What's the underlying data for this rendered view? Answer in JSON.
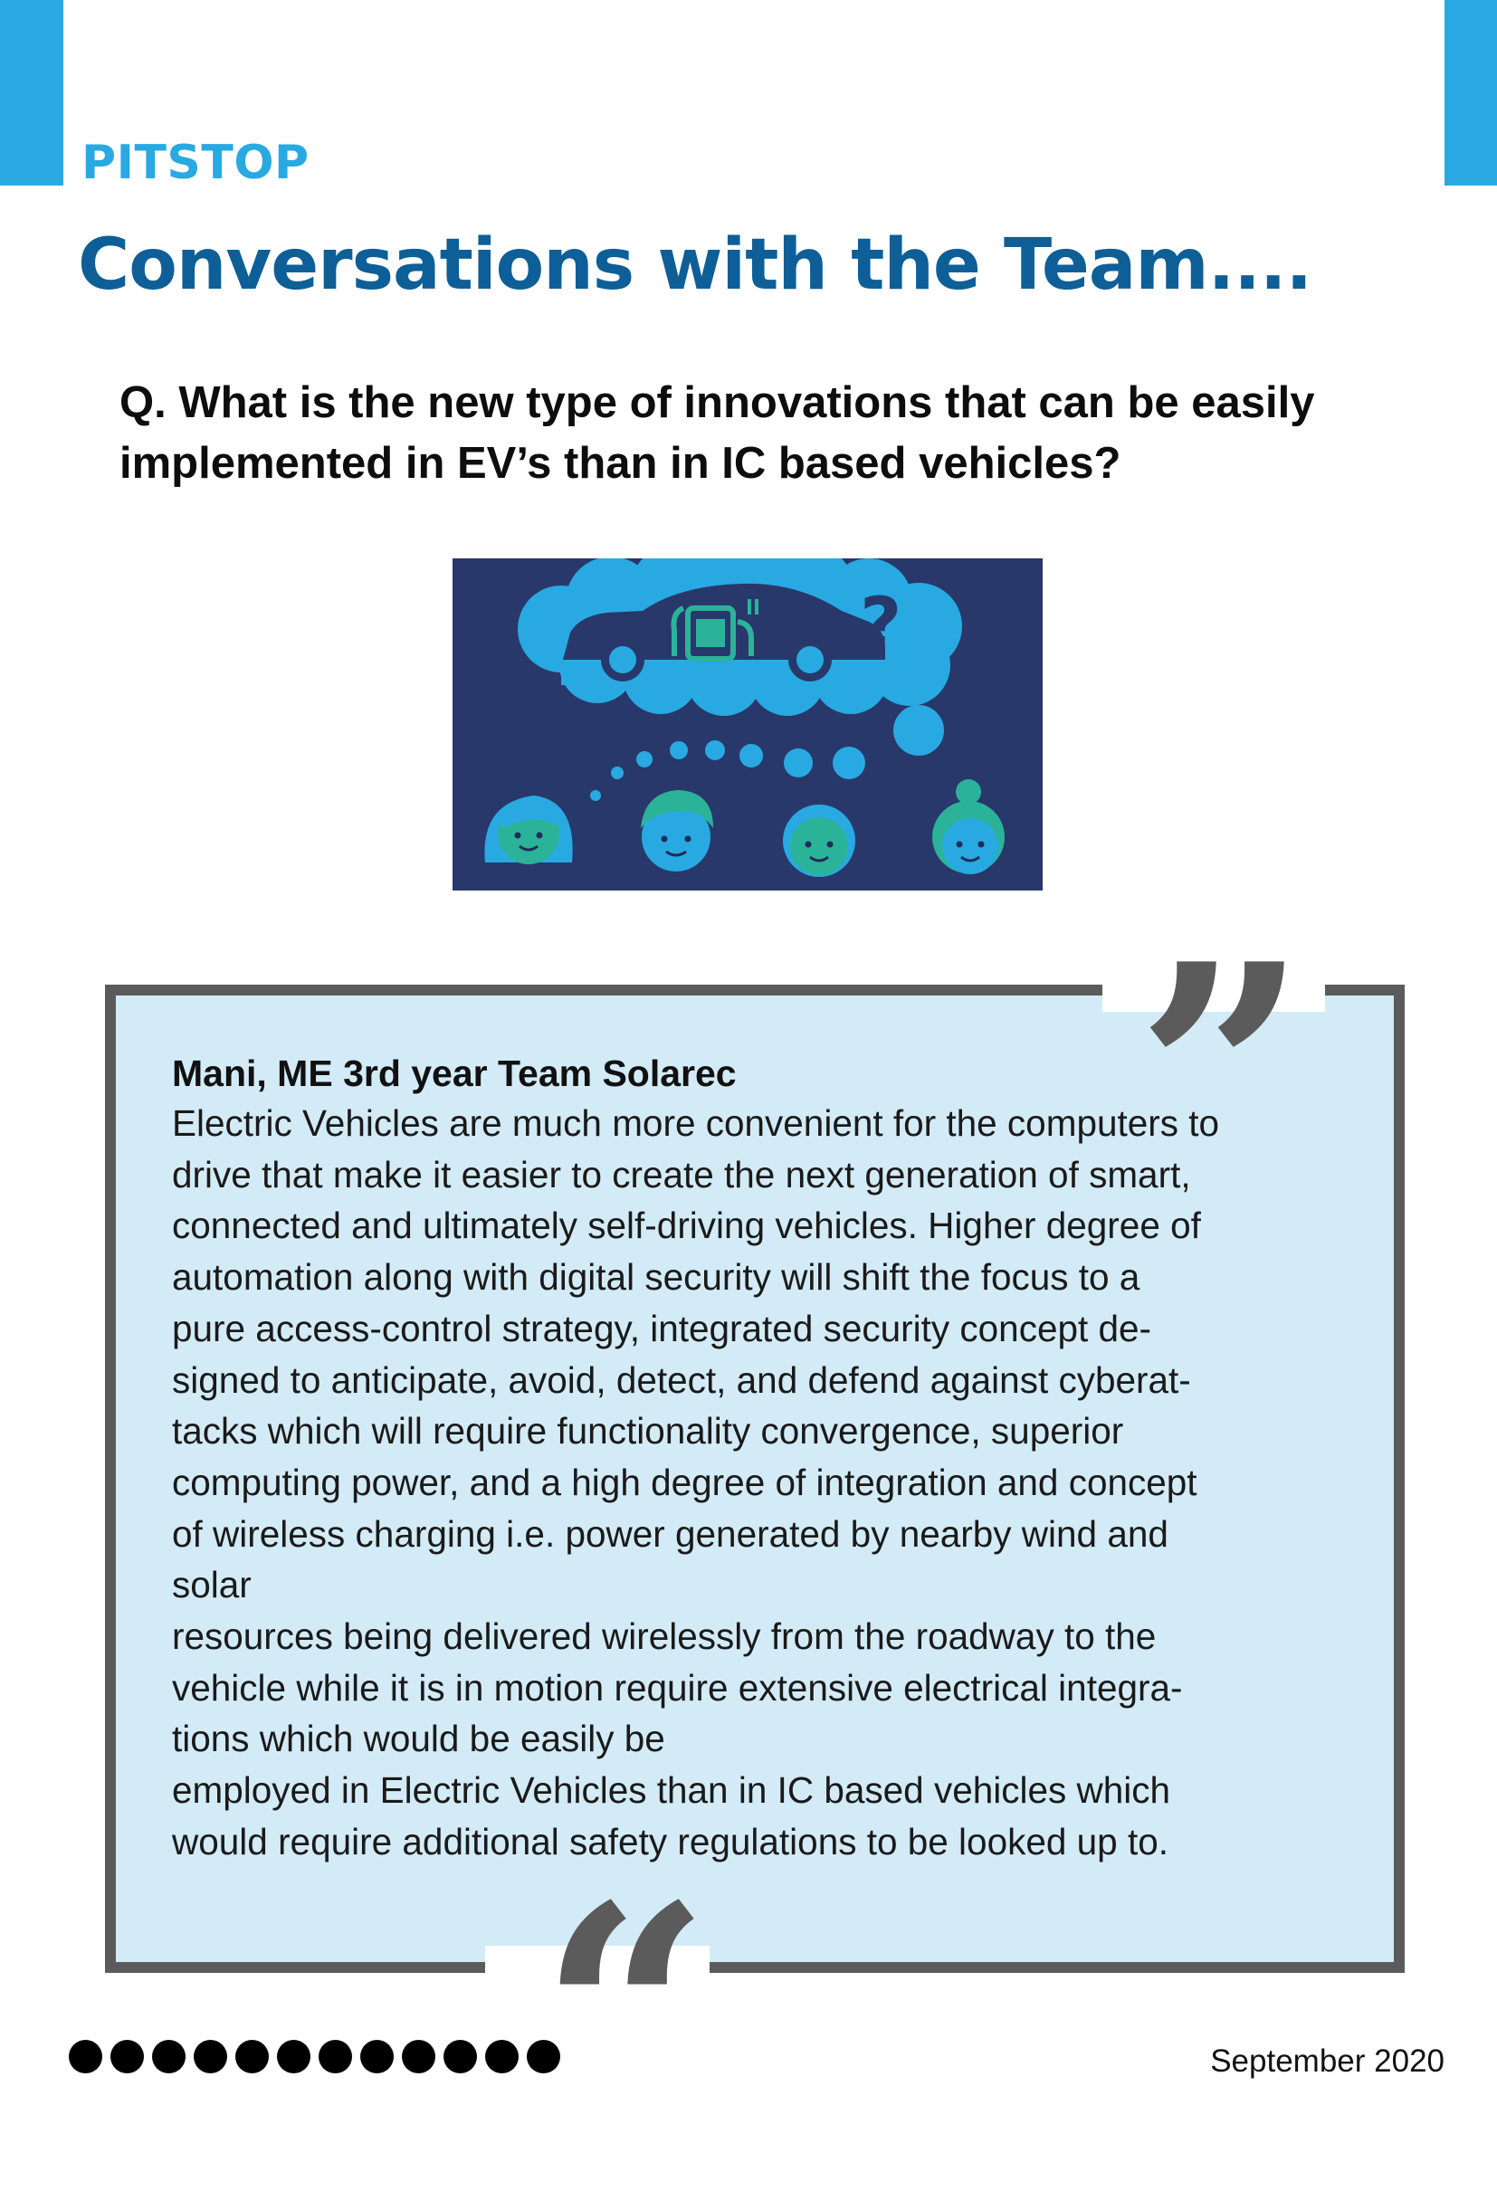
{
  "header": {
    "section_label": "PITSTOP",
    "title": "Conversations with the Team...."
  },
  "question": {
    "text": "Q. What is the new type of innovations that can be easily implemented in EV’s than in IC based vehicles?"
  },
  "illustration": {
    "icon": "ev-thought-cloud-illustration",
    "colors": {
      "background": "#28386b",
      "cloud": "#29a9e1",
      "green": "#2bb39a",
      "dark": "#1f2c57"
    }
  },
  "quote": {
    "speaker": "Mani, ME 3rd year Team Solarec",
    "lines": [
      "Electric Vehicles are much more convenient for the computers to",
      "drive that make it easier to create the next generation of smart,",
      "connected and ultimately self-driving vehicles. Higher degree of",
      "automation along with digital security will shift the focus to a",
      "pure access-control strategy, integrated security concept de-",
      "signed to anticipate, avoid, detect, and defend against cyberat-",
      "tacks which will require functionality convergence, superior",
      "computing power, and a high degree of integration and concept",
      "of wireless charging i.e. power generated by nearby wind and",
      "solar",
      "resources being delivered wirelessly from the roadway to the",
      "vehicle while it is in motion require extensive electrical integra-",
      "tions which would be easily be",
      "employed in Electric Vehicles than in IC based vehicles which",
      "would require additional safety regulations to be looked up to."
    ],
    "open_mark": "“",
    "close_mark": "”",
    "colors": {
      "box_fill": "#d3ebf7",
      "border": "#5b5b5b"
    }
  },
  "footer": {
    "dot_count": 12,
    "date": "September 2020"
  },
  "colors": {
    "accent_light": "#29a9e1",
    "accent_dark": "#0e5f97"
  }
}
